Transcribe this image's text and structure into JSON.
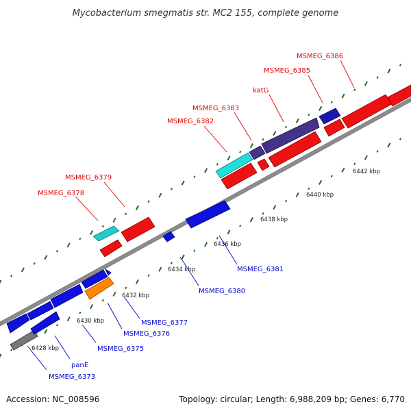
{
  "title": "Mycobacterium smegmatis str. MC2 155, complete genome",
  "footer": {
    "accession": "Accession: NC_008596",
    "topology": "Topology: circular; Length: 6,988,209 bp; Genes: 6,770"
  },
  "colors": {
    "forward_label": "#dd0000",
    "reverse_label": "#0000cc",
    "backbone": "#888888",
    "tick_fill": "#226622"
  },
  "ticks": [
    "6428 kbp",
    "6430 kbp",
    "6432 kbp",
    "6434 kbp",
    "6436 kbp",
    "6438 kbp",
    "6440 kbp",
    "6442 kbp"
  ],
  "labels_top": [
    "MSMEG_6378",
    "MSMEG_6379",
    "MSMEG_6382",
    "MSMEG_6383",
    "katG",
    "MSMEG_6385",
    "MSMEG_6386"
  ],
  "labels_bottom": [
    "MSMEG_6373",
    "panE",
    "MSMEG_6375",
    "MSMEG_6376",
    "MSMEG_6377",
    "MSMEG_6380",
    "MSMEG_6381"
  ],
  "legend_icons": [
    "forward-gene-arrow-icon",
    "reverse-gene-arrow-icon"
  ]
}
